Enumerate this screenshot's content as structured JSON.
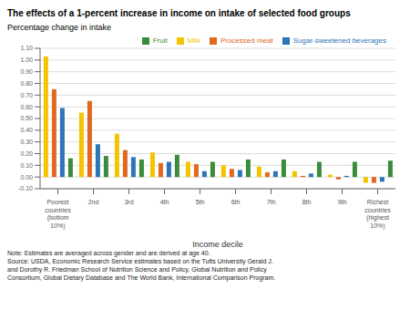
{
  "chart_data": {
    "type": "bar",
    "title": "The effects of a 1-percent increase in income on intake of selected food groups",
    "ylabel": "Percentage change in intake",
    "xlabel": "Income decile",
    "categories": [
      "Poorest\ncountries\n(bottom\n10%)",
      "2nd",
      "3rd",
      "4th",
      "5th",
      "6th",
      "7th",
      "8th",
      "9th",
      "Richest\ncountries\n(highest\n10%)"
    ],
    "series": [
      {
        "name": "Milk",
        "color": "#F5C400",
        "values": [
          1.03,
          0.55,
          0.37,
          0.21,
          0.13,
          0.1,
          0.09,
          0.05,
          0.02,
          -0.05
        ]
      },
      {
        "name": "Processed meat",
        "color": "#E06820",
        "values": [
          0.75,
          0.65,
          0.23,
          0.12,
          0.11,
          0.07,
          0.04,
          0.01,
          -0.02,
          -0.05
        ]
      },
      {
        "name": "Sugar-sweetened beverages",
        "color": "#2E75B6",
        "values": [
          0.59,
          0.28,
          0.17,
          0.13,
          0.05,
          0.06,
          0.05,
          0.03,
          0.01,
          -0.04
        ]
      },
      {
        "name": "Fruit",
        "color": "#3A8C3A",
        "values": [
          0.16,
          0.18,
          0.15,
          0.19,
          0.13,
          0.15,
          0.15,
          0.13,
          0.13,
          0.14
        ]
      }
    ],
    "ylim": [
      -0.1,
      1.1
    ],
    "yticks": [
      {
        "value": -0.1,
        "label": "-0.10"
      },
      {
        "value": 0.0,
        "label": "0.00"
      },
      {
        "value": 0.1,
        "label": "0.10"
      },
      {
        "value": 0.2,
        "label": "0.20"
      },
      {
        "value": 0.3,
        "label": "0.30"
      },
      {
        "value": 0.4,
        "label": "0.40"
      },
      {
        "value": 0.5,
        "label": "0.50"
      },
      {
        "value": 0.6,
        "label": "0.60"
      },
      {
        "value": 0.7,
        "label": "0.70"
      },
      {
        "value": 0.8,
        "label": "0.80"
      },
      {
        "value": 0.9,
        "label": "0.90"
      },
      {
        "value": 1.0,
        "label": "1.00"
      },
      {
        "value": 1.1,
        "label": "1.10"
      }
    ],
    "grid": true,
    "legend": "upper right",
    "notes": "Note: Estimates are averaged across gender and are derived at age 40.\nSource: USDA, Economic Research Service estimates based on the Tufts University Gerald J.\nand Dorothy R. Friedman School of Nutrition Science and Policy, Global Nutrition and Policy\nConsortium, Global Dietary Database and The World Bank, International Comparison Program."
  }
}
